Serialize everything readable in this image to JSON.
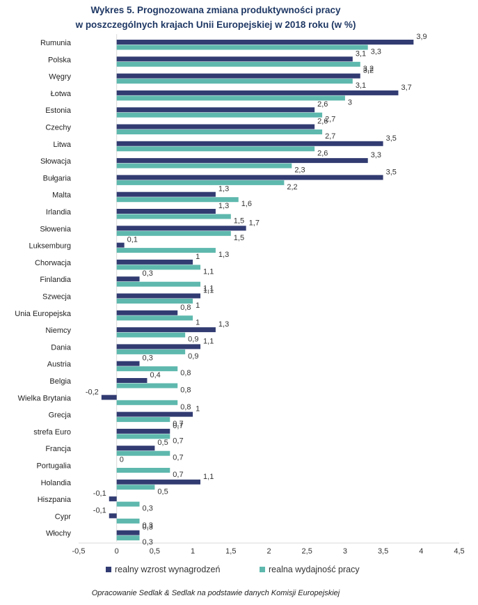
{
  "chart_data": {
    "type": "bar",
    "orientation": "horizontal",
    "title_line1": "Wykres 5. Prognozowana zmiana produktywności pracy",
    "title_line2": "w poszczególnych krajach Unii Europejskiej w 2018 roku (w %)",
    "categories": [
      "Rumunia",
      "Polska",
      "Węgry",
      "Łotwa",
      "Estonia",
      "Czechy",
      "Litwa",
      "Słowacja",
      "Bułgaria",
      "Malta",
      "Irlandia",
      "Słowenia",
      "Luksemburg",
      "Chorwacja",
      "Finlandia",
      "Szwecja",
      "Unia Europejska",
      "Niemcy",
      "Dania",
      "Austria",
      "Belgia",
      "Wielka Brytania",
      "Grecja",
      "strefa Euro",
      "Francja",
      "Portugalia",
      "Holandia",
      "Hiszpania",
      "Cypr",
      "Włochy"
    ],
    "series": [
      {
        "name": "realny wzrost wynagrodzeń",
        "color": "#323c72",
        "values": [
          3.9,
          3.1,
          3.2,
          3.7,
          2.6,
          2.6,
          3.5,
          3.3,
          3.5,
          1.3,
          1.3,
          1.7,
          0.1,
          1,
          0.3,
          1.1,
          0.8,
          1.3,
          1.1,
          0.3,
          0.4,
          -0.2,
          1,
          0.7,
          0.5,
          0,
          1.1,
          -0.1,
          -0.1,
          0.3
        ]
      },
      {
        "name": "realna wydajność pracy",
        "color": "#5eb8ad",
        "values": [
          3.3,
          3.2,
          3.1,
          3,
          2.7,
          2.7,
          2.6,
          2.3,
          2.2,
          1.6,
          1.5,
          1.5,
          1.3,
          1.1,
          1.1,
          1,
          1,
          0.9,
          0.9,
          0.8,
          0.8,
          0.8,
          0.7,
          0.7,
          0.7,
          0.7,
          0.5,
          0.3,
          0.3,
          0.3
        ]
      }
    ],
    "xlim": [
      -0.5,
      4.5
    ],
    "xticks": [
      "-0,5",
      "0",
      "0,5",
      "1",
      "1,5",
      "2",
      "2,5",
      "3",
      "3,5",
      "4",
      "4,5"
    ],
    "legend_position": "bottom"
  },
  "source": "Opracowanie Sedlak & Sedlak na podstawie danych Komisji Europejskiej"
}
